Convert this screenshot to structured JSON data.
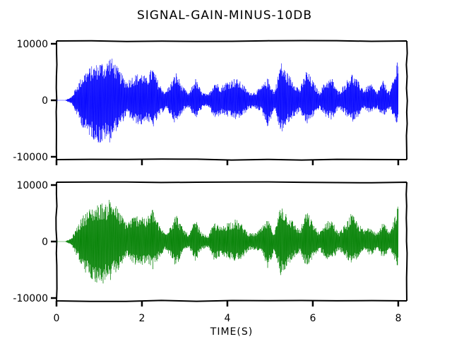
{
  "chart_data": {
    "type": "line",
    "title": "SIGNAL-GAIN-MINUS-10DB",
    "xlabel": "TIME(S)",
    "ylabel": "",
    "xlim": [
      0,
      8.2
    ],
    "ylim": [
      -10000,
      10000
    ],
    "x_ticks": [
      0,
      2,
      4,
      6,
      8
    ],
    "x_tick_labels": [
      "0",
      "2",
      "4",
      "6",
      "8"
    ],
    "y_ticks": [
      10000,
      0,
      -10000
    ],
    "y_tick_labels": [
      "10000",
      "0",
      "-10000"
    ],
    "grid": false,
    "shared_x": true,
    "panels": [
      {
        "color": "#0000ff"
      },
      {
        "color": "#008000"
      }
    ],
    "envelope": {
      "x": [
        0,
        0.2,
        0.35,
        0.5,
        0.65,
        0.8,
        0.95,
        1.05,
        1.15,
        1.25,
        1.35,
        1.5,
        1.65,
        1.8,
        2.0,
        2.1,
        2.25,
        2.4,
        2.55,
        2.7,
        2.8,
        2.95,
        3.1,
        3.25,
        3.4,
        3.55,
        3.7,
        3.85,
        4.0,
        4.2,
        4.35,
        4.5,
        4.65,
        4.8,
        4.95,
        5.1,
        5.25,
        5.4,
        5.55,
        5.7,
        5.85,
        6.0,
        6.15,
        6.3,
        6.45,
        6.6,
        6.75,
        6.9,
        7.05,
        7.2,
        7.35,
        7.5,
        7.65,
        7.8,
        7.95,
        8.0
      ],
      "pos": [
        0,
        0,
        600,
        3000,
        5000,
        6000,
        6500,
        7000,
        6500,
        8000,
        7000,
        5000,
        3500,
        4500,
        5000,
        4000,
        6000,
        3000,
        1500,
        3500,
        5000,
        2500,
        1200,
        4000,
        1500,
        1000,
        3500,
        2500,
        3500,
        4000,
        3000,
        1500,
        1500,
        2500,
        4000,
        1500,
        7000,
        5000,
        3500,
        2000,
        5500,
        3500,
        1500,
        3500,
        4000,
        1500,
        3000,
        5000,
        3500,
        2000,
        3000,
        1500,
        3500,
        1500,
        5500,
        9500
      ],
      "neg": [
        0,
        0,
        -600,
        -3000,
        -5500,
        -6500,
        -7500,
        -8000,
        -7000,
        -7500,
        -6000,
        -4500,
        -2500,
        -4000,
        -4500,
        -3500,
        -5000,
        -3000,
        -1500,
        -3000,
        -4500,
        -2000,
        -1200,
        -3500,
        -1500,
        -1000,
        -3500,
        -2500,
        -3000,
        -3500,
        -3000,
        -1500,
        -1500,
        -2000,
        -5000,
        -1500,
        -6000,
        -4500,
        -3000,
        -2000,
        -4500,
        -3000,
        -1500,
        -3000,
        -3500,
        -1500,
        -2500,
        -4000,
        -3000,
        -1500,
        -2500,
        -1500,
        -3000,
        -1500,
        -4000,
        -4500
      ]
    }
  }
}
